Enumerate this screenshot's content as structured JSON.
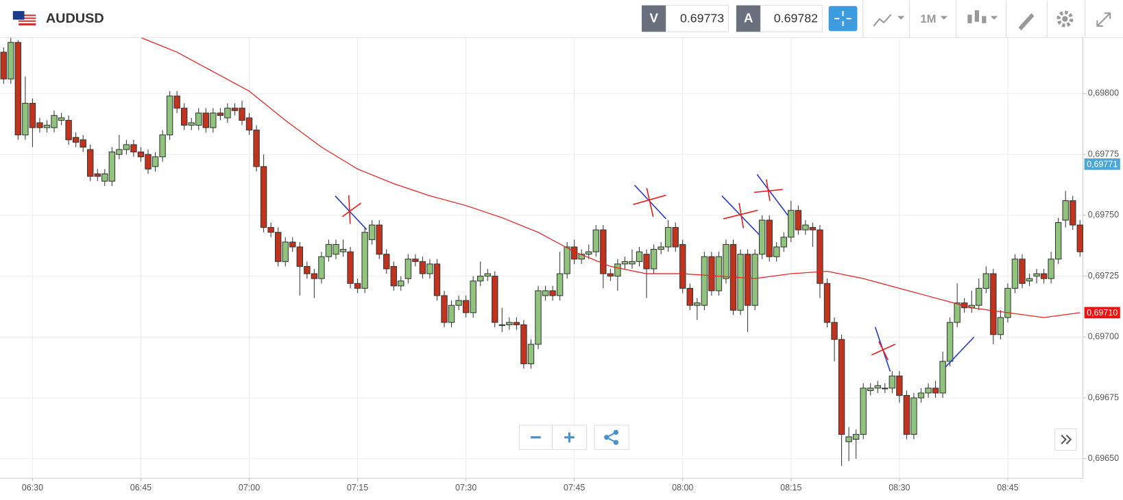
{
  "header": {
    "symbol": "AUDUSD",
    "bid_label": "V",
    "bid": "0.69773",
    "ask_label": "A",
    "ask": "0.69782",
    "timeframe": "1M"
  },
  "chart_data": {
    "type": "candlestick",
    "open": [
      0.69817,
      0.69806,
      0.69821,
      0.69783,
      0.69796,
      0.69788,
      0.69786,
      0.69786,
      0.69789,
      0.69789,
      0.69782,
      0.69781,
      0.69777,
      0.69767,
      0.69764,
      0.69764,
      0.69775,
      0.69777,
      0.69779,
      0.69776,
      0.69775,
      0.6977,
      0.69774,
      0.69783,
      0.69799,
      0.69794,
      0.69787,
      0.69787,
      0.69792,
      0.69786,
      0.69792,
      0.6979,
      0.69794,
      0.69794,
      0.6979,
      0.69785,
      0.6977,
      0.69745,
      0.69743,
      0.69731,
      0.69739,
      0.69737,
      0.69729,
      0.69726,
      0.69724,
      0.69733,
      0.69734,
      0.69735,
      0.69735,
      0.69722,
      0.6972,
      0.6974,
      0.69746,
      0.69734,
      0.69729,
      0.69721,
      0.69724,
      0.69732,
      0.69731,
      0.69726,
      0.6973,
      0.69717,
      0.69706,
      0.69713,
      0.69715,
      0.6971,
      0.69723,
      0.69725,
      0.69725,
      0.69705,
      0.69705,
      0.69706,
      0.69705,
      0.69689,
      0.69697,
      0.69717,
      0.69719,
      0.69717,
      0.69726,
      0.69737,
      0.69732,
      0.69734,
      0.69735,
      0.69744,
      0.69726,
      0.69725,
      0.6973,
      0.6973,
      0.69731,
      0.69734,
      0.69728,
      0.69736,
      0.69737,
      0.69745,
      0.69738,
      0.6972,
      0.69713,
      0.69713,
      0.69733,
      0.69719,
      0.69724,
      0.69738,
      0.69711,
      0.69734,
      0.69713,
      0.69734,
      0.69748,
      0.69733,
      0.69737,
      0.69741,
      0.69752,
      0.69744,
      0.69745,
      0.69744,
      0.69722,
      0.69706,
      0.69699,
      0.69657,
      0.69658,
      0.6966,
      0.69678,
      0.69679,
      0.69679,
      0.69679,
      0.69684,
      0.69676,
      0.6966,
      0.69675,
      0.69677,
      0.69679,
      0.69677,
      0.6969,
      0.69706,
      0.69714,
      0.69712,
      0.69713,
      0.6972,
      0.69726,
      0.69701,
      0.69708,
      0.6972,
      0.69732,
      0.69723,
      0.69725,
      0.69726,
      0.69724,
      0.69732,
      0.69748,
      0.69756,
      0.69746
    ],
    "high": [
      0.69819,
      0.69823,
      0.69822,
      0.69807,
      0.69798,
      0.6979,
      0.69789,
      0.69793,
      0.69792,
      0.69791,
      0.69784,
      0.69783,
      0.69779,
      0.69769,
      0.69769,
      0.69778,
      0.69783,
      0.69781,
      0.69781,
      0.69778,
      0.69777,
      0.69776,
      0.69785,
      0.69801,
      0.69801,
      0.69796,
      0.6979,
      0.69794,
      0.69794,
      0.69794,
      0.69794,
      0.69796,
      0.69796,
      0.69797,
      0.69792,
      0.69787,
      0.69775,
      0.69747,
      0.69745,
      0.69741,
      0.69741,
      0.69739,
      0.69731,
      0.69728,
      0.69735,
      0.6974,
      0.6974,
      0.6974,
      0.69737,
      0.69724,
      0.69745,
      0.69748,
      0.69748,
      0.69736,
      0.69731,
      0.69725,
      0.69734,
      0.69734,
      0.69733,
      0.69732,
      0.69732,
      0.69719,
      0.69715,
      0.69717,
      0.69717,
      0.69725,
      0.69731,
      0.69728,
      0.69727,
      0.69712,
      0.69708,
      0.69708,
      0.69707,
      0.69699,
      0.69721,
      0.69721,
      0.69721,
      0.69735,
      0.69739,
      0.6974,
      0.69736,
      0.69738,
      0.69746,
      0.69746,
      0.69728,
      0.69732,
      0.69733,
      0.69736,
      0.69737,
      0.69736,
      0.69738,
      0.69739,
      0.69748,
      0.69747,
      0.6974,
      0.69722,
      0.69716,
      0.69735,
      0.69735,
      0.69735,
      0.6974,
      0.6974,
      0.69736,
      0.69736,
      0.69736,
      0.6975,
      0.6975,
      0.69739,
      0.69743,
      0.69756,
      0.69754,
      0.69748,
      0.69747,
      0.69746,
      0.69724,
      0.69708,
      0.69701,
      0.69663,
      0.69662,
      0.69681,
      0.69681,
      0.69682,
      0.69681,
      0.69686,
      0.69686,
      0.69678,
      0.69677,
      0.69679,
      0.69681,
      0.69682,
      0.69694,
      0.69708,
      0.69722,
      0.69716,
      0.69719,
      0.69724,
      0.69729,
      0.69728,
      0.69711,
      0.69722,
      0.69734,
      0.69734,
      0.69726,
      0.69728,
      0.69728,
      0.69735,
      0.69749,
      0.6976,
      0.69758,
      0.69748
    ],
    "low": [
      0.69804,
      0.69804,
      0.69781,
      0.69781,
      0.69778,
      0.69784,
      0.69784,
      0.69784,
      0.69787,
      0.69779,
      0.69778,
      0.69776,
      0.69764,
      0.69764,
      0.69762,
      0.69762,
      0.69773,
      0.69775,
      0.69774,
      0.69772,
      0.69767,
      0.69768,
      0.69772,
      0.69781,
      0.69792,
      0.69785,
      0.69785,
      0.69785,
      0.69784,
      0.69784,
      0.69789,
      0.69788,
      0.69791,
      0.69787,
      0.69783,
      0.69768,
      0.69743,
      0.69741,
      0.69729,
      0.69729,
      0.69735,
      0.69717,
      0.69724,
      0.69716,
      0.69722,
      0.69731,
      0.69732,
      0.69733,
      0.6972,
      0.69718,
      0.69718,
      0.69738,
      0.69732,
      0.69726,
      0.69719,
      0.69719,
      0.69722,
      0.69729,
      0.69724,
      0.69724,
      0.69715,
      0.69704,
      0.69704,
      0.69711,
      0.69708,
      0.69708,
      0.69721,
      0.69723,
      0.69704,
      0.69702,
      0.69703,
      0.69703,
      0.69687,
      0.69687,
      0.69695,
      0.69715,
      0.69715,
      0.69715,
      0.69724,
      0.6973,
      0.6973,
      0.69732,
      0.69733,
      0.6972,
      0.69723,
      0.69719,
      0.69728,
      0.69728,
      0.69729,
      0.69716,
      0.69726,
      0.69734,
      0.69735,
      0.69735,
      0.69718,
      0.69711,
      0.69707,
      0.69711,
      0.69717,
      0.69717,
      0.69722,
      0.69709,
      0.69709,
      0.69702,
      0.69711,
      0.69732,
      0.69731,
      0.69731,
      0.69735,
      0.69739,
      0.69742,
      0.69742,
      0.69737,
      0.69716,
      0.69704,
      0.6969,
      0.69647,
      0.69649,
      0.6965,
      0.69658,
      0.69676,
      0.69677,
      0.69677,
      0.69677,
      0.69673,
      0.69658,
      0.69658,
      0.69673,
      0.69675,
      0.69675,
      0.69675,
      0.69688,
      0.69704,
      0.6971,
      0.6971,
      0.69711,
      0.69718,
      0.69697,
      0.69699,
      0.69706,
      0.69718,
      0.6972,
      0.69721,
      0.69722,
      0.69722,
      0.69722,
      0.6973,
      0.69745,
      0.69744,
      0.69733
    ],
    "close": [
      0.69806,
      0.69821,
      0.69783,
      0.69796,
      0.69786,
      0.69786,
      0.69787,
      0.69791,
      0.6979,
      0.69781,
      0.6978,
      0.69778,
      0.69766,
      0.69766,
      0.69767,
      0.69776,
      0.69777,
      0.69779,
      0.69776,
      0.69774,
      0.69769,
      0.69774,
      0.69783,
      0.69799,
      0.69794,
      0.69787,
      0.69788,
      0.69792,
      0.69786,
      0.69792,
      0.69791,
      0.69794,
      0.69793,
      0.69789,
      0.69785,
      0.6977,
      0.69745,
      0.69743,
      0.69731,
      0.69739,
      0.69737,
      0.69729,
      0.69726,
      0.69724,
      0.69733,
      0.69738,
      0.69738,
      0.69736,
      0.69722,
      0.6972,
      0.69743,
      0.69746,
      0.69734,
      0.69728,
      0.69721,
      0.69723,
      0.69732,
      0.69731,
      0.69726,
      0.6973,
      0.69717,
      0.69706,
      0.69713,
      0.69715,
      0.6971,
      0.69723,
      0.69725,
      0.69726,
      0.69706,
      0.69705,
      0.69706,
      0.69705,
      0.69689,
      0.69697,
      0.69719,
      0.69719,
      0.69717,
      0.69726,
      0.69737,
      0.69732,
      0.69734,
      0.69735,
      0.69744,
      0.69726,
      0.69725,
      0.6973,
      0.69731,
      0.69731,
      0.69735,
      0.69728,
      0.69736,
      0.69737,
      0.69745,
      0.69737,
      0.6972,
      0.69713,
      0.69714,
      0.69733,
      0.69719,
      0.69733,
      0.69738,
      0.69711,
      0.69734,
      0.69713,
      0.69734,
      0.69748,
      0.69733,
      0.69737,
      0.69741,
      0.69752,
      0.69744,
      0.69746,
      0.69744,
      0.69722,
      0.69706,
      0.69699,
      0.6966,
      0.69659,
      0.6966,
      0.69679,
      0.69679,
      0.6968,
      0.69679,
      0.69684,
      0.69676,
      0.6966,
      0.69675,
      0.69677,
      0.69679,
      0.69677,
      0.6969,
      0.69706,
      0.69714,
      0.69712,
      0.69713,
      0.6972,
      0.69726,
      0.69701,
      0.69708,
      0.6972,
      0.69732,
      0.69722,
      0.69724,
      0.69726,
      0.69724,
      0.69732,
      0.69747,
      0.69756,
      0.69746,
      0.69735
    ],
    "up_color": "#90c47c",
    "down_color": "#c0341d",
    "xlim": [
      -0.5,
      149.4
    ],
    "xticks": [
      {
        "value": 4,
        "label": "06:30"
      },
      {
        "value": 19,
        "label": "06:45"
      },
      {
        "value": 34,
        "label": "07:00"
      },
      {
        "value": 49,
        "label": "07:15"
      },
      {
        "value": 64,
        "label": "07:30"
      },
      {
        "value": 79,
        "label": "07:45"
      },
      {
        "value": 94,
        "label": "08:00"
      },
      {
        "value": 109,
        "label": "08:15"
      },
      {
        "value": 124,
        "label": "08:30"
      },
      {
        "value": 139,
        "label": "08:45"
      }
    ],
    "ylim": [
      0.69642,
      0.69823
    ],
    "yticks": [
      {
        "value": 0.6965,
        "label": "0,69650"
      },
      {
        "value": 0.69675,
        "label": "0,69675"
      },
      {
        "value": 0.697,
        "label": "0,69700"
      },
      {
        "value": 0.69725,
        "label": "0,69725"
      },
      {
        "value": 0.6975,
        "label": "0,69750"
      },
      {
        "value": 0.69775,
        "label": "0,69775"
      },
      {
        "value": 0.698,
        "label": "0,69800"
      }
    ],
    "grid": true,
    "moving_average": {
      "color": "#e8211f",
      "x": [
        19,
        24,
        29,
        34,
        39,
        44,
        49,
        54,
        59,
        64,
        69,
        74,
        79,
        84,
        89,
        94,
        99,
        104,
        109,
        114,
        119,
        124,
        129,
        134,
        139,
        144,
        149
      ],
      "values": [
        0.69823,
        0.69817,
        0.69809,
        0.69801,
        0.69789,
        0.69778,
        0.69769,
        0.69763,
        0.69758,
        0.69754,
        0.69749,
        0.69743,
        0.69735,
        0.69729,
        0.69726,
        0.69726,
        0.69725,
        0.69724,
        0.69726,
        0.69727,
        0.69724,
        0.6972,
        0.69716,
        0.69712,
        0.6971,
        0.69708,
        0.6971
      ]
    },
    "price_tags": [
      {
        "value": 0.69771,
        "label": "0,69771",
        "color": "#4aa8d8"
      },
      {
        "value": 0.6971,
        "label": "0,69710",
        "color": "#ee1111"
      }
    ]
  }
}
